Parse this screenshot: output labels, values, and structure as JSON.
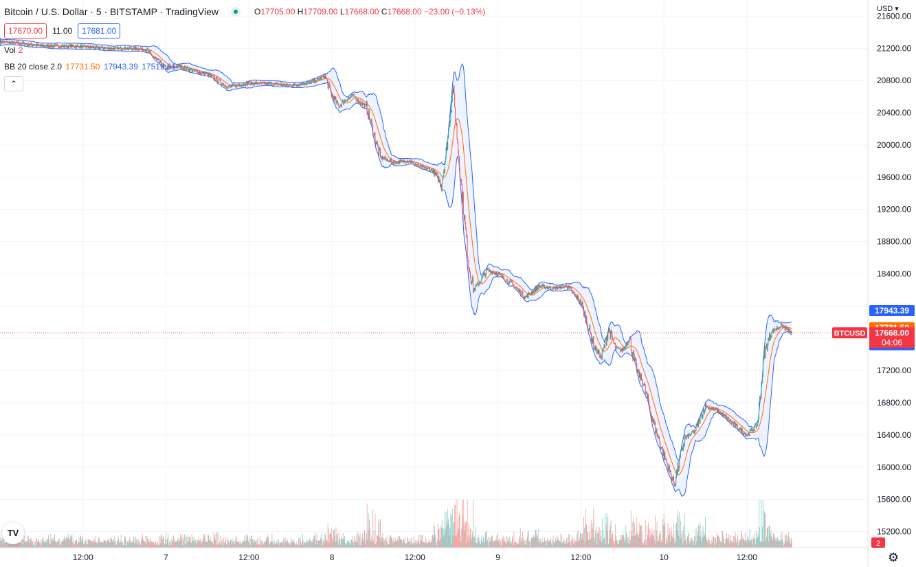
{
  "header": {
    "symbol_title": "Bitcoin / U.S. Dollar · 5 · BITSTAMP · TradingView",
    "ohlc": {
      "o_label": "O",
      "o": "17705.00",
      "h_label": "H",
      "h": "17709.00",
      "l_label": "L",
      "l": "17668.00",
      "c_label": "C",
      "c": "17668.00",
      "change": "−23.00 (−0.13%)"
    },
    "sell_price": "17670.00",
    "spread": "11.00",
    "buy_price": "17681.00",
    "volume_label": "Vol",
    "volume_value": "2",
    "bb_label": "BB 20 close 2.0",
    "bb_middle": "17731.50",
    "bb_upper": "17943.39",
    "bb_lower": "17519.61",
    "collapse_icon": "chevron-up-icon",
    "currency": "USD"
  },
  "colors": {
    "up": "#26a69a",
    "down": "#ef5350",
    "bb_band": "#2962ff",
    "bb_basis": "#ff6d00",
    "last_price": "#f23645",
    "band_fill": "#2962ff"
  },
  "chart_data": {
    "type": "candlestick",
    "symbol": "BTCUSD",
    "interval": "5",
    "y_axis": {
      "ticks": [
        15200,
        15600,
        16000,
        16400,
        16800,
        17200,
        17600,
        18000,
        18400,
        18800,
        19200,
        19600,
        20000,
        20400,
        20800,
        21200,
        21600
      ],
      "tick_labels": [
        "15200.00",
        "15600.00",
        "16000.00",
        "16400.00",
        "16800.00",
        "17200.00",
        "",
        "",
        "18400.00",
        "18800.00",
        "19200.00",
        "19600.00",
        "20000.00",
        "20400.00",
        "20800.00",
        "21200.00",
        "21600.00"
      ],
      "range": [
        15000,
        21800
      ]
    },
    "x_axis": {
      "tick_labels": [
        "12:00",
        "7",
        "12:00",
        "8",
        "12:00",
        "9",
        "12:00",
        "10",
        "12:00"
      ],
      "tick_hours": [
        12,
        24,
        36,
        48,
        60,
        72,
        84,
        96,
        108
      ],
      "range_hours": [
        0,
        125.5
      ]
    },
    "price_path_hours": [
      0,
      3,
      6,
      9,
      12,
      15,
      18,
      21,
      24,
      26,
      28,
      30,
      33,
      36,
      39,
      42,
      45,
      47,
      48,
      49,
      50,
      51,
      53,
      55,
      57,
      59,
      61,
      62.5,
      63.3,
      63.8,
      64.5,
      65.5,
      66.5,
      67.3,
      67.8,
      68.5,
      69.5,
      70.5,
      72,
      74,
      76,
      78,
      80,
      82,
      84,
      86,
      87,
      88,
      89,
      90,
      91,
      92,
      93,
      94.5,
      96,
      97.5,
      99,
      100.5,
      102,
      104,
      106,
      108,
      109.5,
      110.5,
      111.5,
      113,
      114.5
    ],
    "price_path_values": [
      21280,
      21260,
      21230,
      21230,
      21220,
      21200,
      21200,
      21190,
      20950,
      20980,
      20920,
      20880,
      20720,
      20770,
      20760,
      20740,
      20780,
      20850,
      20620,
      20480,
      20560,
      20610,
      20470,
      19850,
      19780,
      19810,
      19720,
      19690,
      19600,
      19500,
      19900,
      20720,
      19700,
      18950,
      18500,
      18200,
      18320,
      18450,
      18400,
      18280,
      18110,
      18250,
      18220,
      18250,
      18050,
      17480,
      17360,
      17720,
      17480,
      17450,
      17600,
      17220,
      17050,
      16550,
      16150,
      15790,
      16350,
      16450,
      16760,
      16690,
      16540,
      16400,
      16520,
      17400,
      17680,
      17760,
      17668
    ],
    "last": {
      "label": "BTCUSD",
      "price": "17668.00",
      "countdown": "04:06",
      "value": 17668
    },
    "bollinger": {
      "period": 20,
      "stddev": 2.0,
      "source": "close",
      "upper": 17943.39,
      "basis": 17731.5,
      "lower": 17519.61
    },
    "volume_value": 2
  }
}
